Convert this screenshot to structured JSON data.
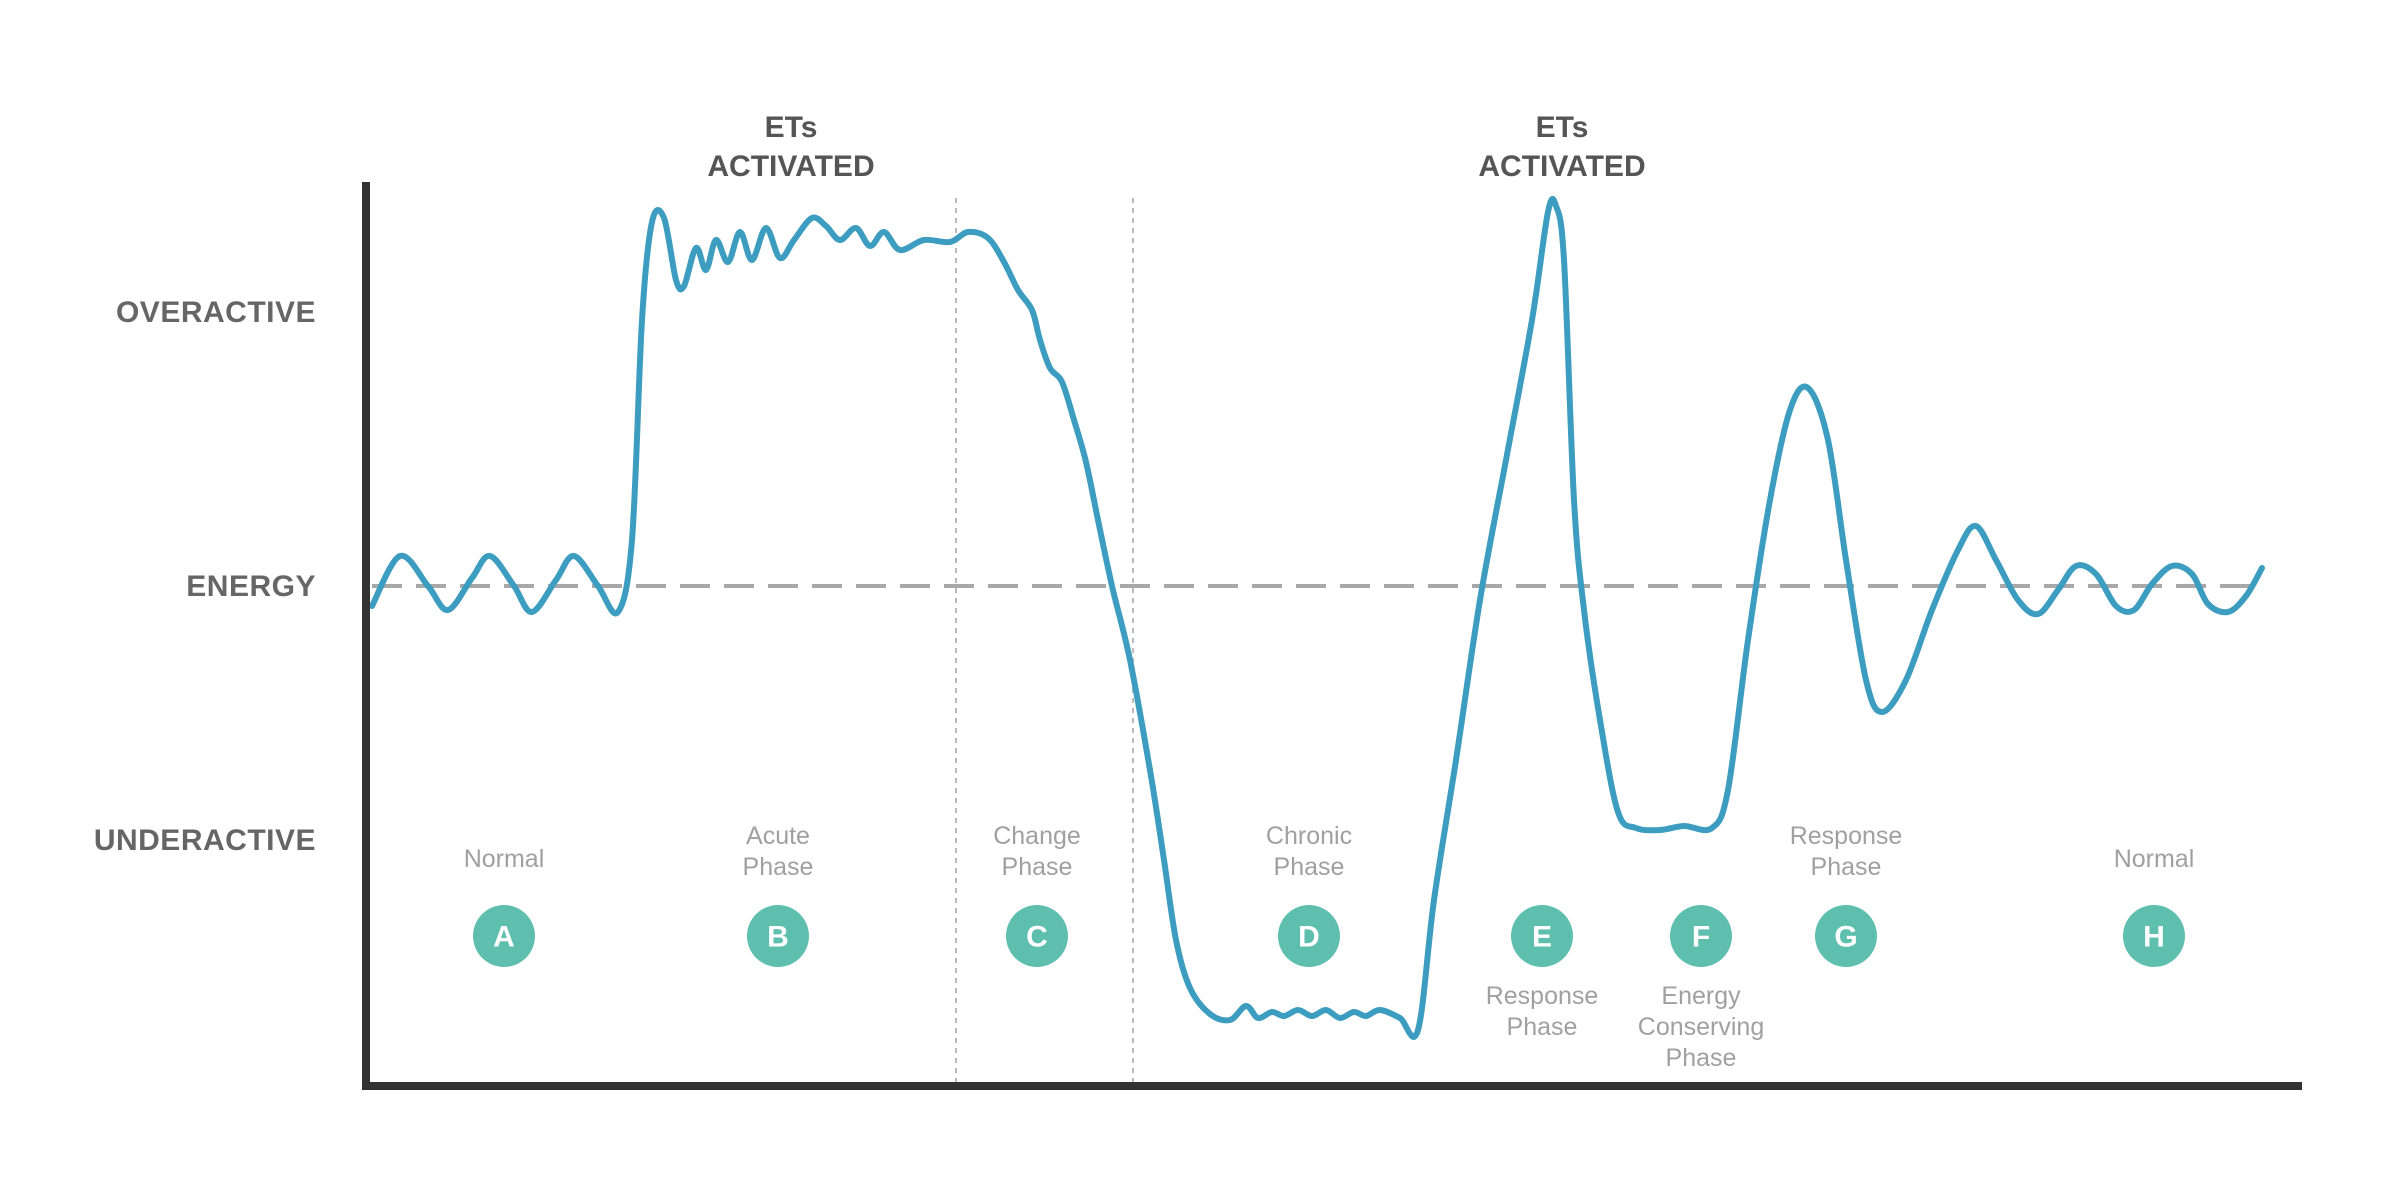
{
  "colors": {
    "curve": "#3d9dc0",
    "marker": "#5fbfae",
    "axis": "#333333",
    "baseline": "#a8a8a8",
    "divider": "#bbbbbb"
  },
  "y_labels": {
    "overactive": "OVERACTIVE",
    "energy": "ENERGY",
    "underactive": "UNDERACTIVE"
  },
  "et_annotations": [
    {
      "line1": "ETs",
      "line2": "ACTIVATED"
    },
    {
      "line1": "ETs",
      "line2": "ACTIVATED"
    }
  ],
  "phases": [
    {
      "letter": "A",
      "label_lines": [
        "Normal"
      ],
      "label_position": "above"
    },
    {
      "letter": "B",
      "label_lines": [
        "Acute",
        "Phase"
      ],
      "label_position": "above"
    },
    {
      "letter": "C",
      "label_lines": [
        "Change",
        "Phase"
      ],
      "label_position": "above"
    },
    {
      "letter": "D",
      "label_lines": [
        "Chronic",
        "Phase"
      ],
      "label_position": "above"
    },
    {
      "letter": "E",
      "label_lines": [
        "Response",
        "Phase"
      ],
      "label_position": "below"
    },
    {
      "letter": "F",
      "label_lines": [
        "Energy",
        "Conserving",
        "Phase"
      ],
      "label_position": "below"
    },
    {
      "letter": "G",
      "label_lines": [
        "Response",
        "Phase"
      ],
      "label_position": "above"
    },
    {
      "letter": "H",
      "label_lines": [
        "Normal"
      ],
      "label_position": "above"
    }
  ]
}
